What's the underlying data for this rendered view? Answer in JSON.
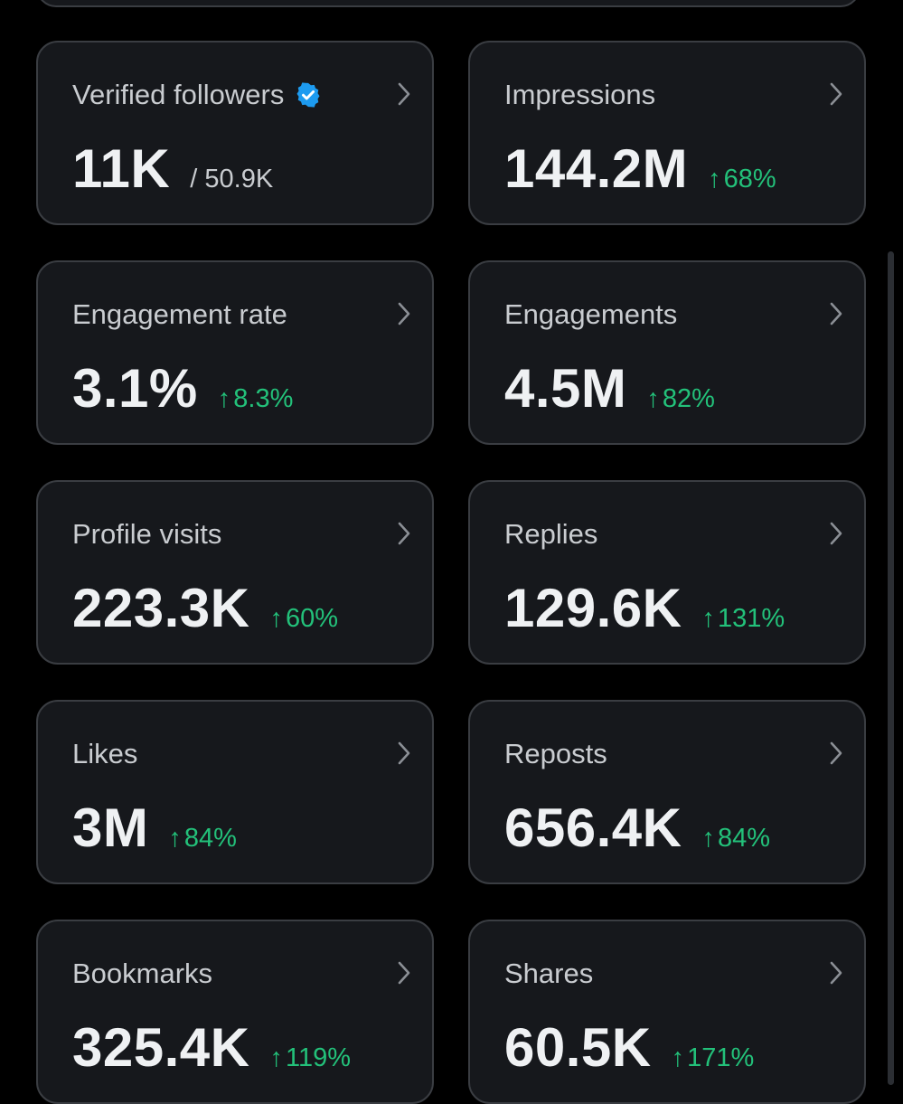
{
  "cards": [
    {
      "title": "Verified followers",
      "value": "11K",
      "total": "/ 50.9K",
      "change": "",
      "verified": true
    },
    {
      "title": "Impressions",
      "value": "144.2M",
      "total": "",
      "change": "68%"
    },
    {
      "title": "Engagement rate",
      "value": "3.1%",
      "total": "",
      "change": "8.3%"
    },
    {
      "title": "Engagements",
      "value": "4.5M",
      "total": "",
      "change": "82%"
    },
    {
      "title": "Profile visits",
      "value": "223.3K",
      "total": "",
      "change": "60%"
    },
    {
      "title": "Replies",
      "value": "129.6K",
      "total": "",
      "change": "131%"
    },
    {
      "title": "Likes",
      "value": "3M",
      "total": "",
      "change": "84%"
    },
    {
      "title": "Reposts",
      "value": "656.4K",
      "total": "",
      "change": "84%"
    },
    {
      "title": "Bookmarks",
      "value": "325.4K",
      "total": "",
      "change": "119%"
    },
    {
      "title": "Shares",
      "value": "60.5K",
      "total": "",
      "change": "171%"
    }
  ],
  "icons": {
    "verified": "verified-badge-icon",
    "chevron": "chevron-right-icon",
    "trend": "arrow-up-icon"
  },
  "colors": {
    "background": "#000000",
    "card": "#16181c",
    "border": "#3a3d42",
    "positive": "#23c17a",
    "verified": "#1d9bf0"
  }
}
